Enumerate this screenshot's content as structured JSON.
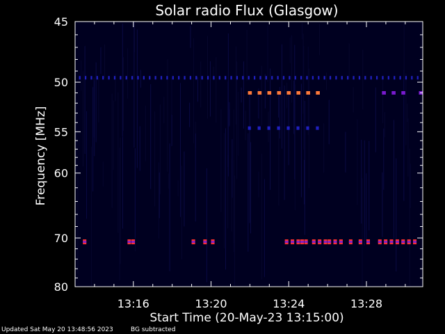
{
  "chart_data": {
    "type": "heatmap",
    "title": "Solar radio Flux (Glasgow)",
    "xlabel": "Start Time (20-May-23 13:15:00)",
    "ylabel": "Frequency [MHz]",
    "x_range_minutes": [
      13.0,
      30.9
    ],
    "y_range_mhz": [
      45,
      80
    ],
    "x_ticks": [
      {
        "label": "13:16",
        "value": 16
      },
      {
        "label": "13:20",
        "value": 20
      },
      {
        "label": "13:24",
        "value": 24
      },
      {
        "label": "13:28",
        "value": 28
      }
    ],
    "y_ticks": [
      {
        "label": "45",
        "value": 45
      },
      {
        "label": "50",
        "value": 50
      },
      {
        "label": "55",
        "value": 55
      },
      {
        "label": "60",
        "value": 60
      },
      {
        "label": "70",
        "value": 70
      },
      {
        "label": "80",
        "value": 80
      }
    ],
    "background_color": "#000020",
    "features": [
      {
        "kind": "dashes",
        "freq": 51,
        "color": "#ff7a3a",
        "starts": [
          21.9,
          22.4,
          22.9,
          23.4,
          23.9,
          24.4,
          24.9,
          25.4
        ],
        "width": 0.2
      },
      {
        "kind": "dashes",
        "freq": 51,
        "color": "#7a1ad0",
        "starts": [
          28.8,
          29.3,
          29.8,
          30.7
        ],
        "width": 0.2
      },
      {
        "kind": "dashes",
        "freq": 49.6,
        "color": "#2020c0",
        "starts": [
          13.2,
          13.5,
          13.8,
          14.1,
          14.4,
          14.7,
          15.0,
          15.3,
          15.6,
          15.9,
          16.2,
          16.5,
          16.8,
          17.1,
          17.4,
          17.7,
          18.0,
          18.3,
          18.6,
          18.9,
          19.2,
          19.5,
          19.8,
          20.1,
          20.4,
          20.7,
          21.0,
          21.3,
          21.6,
          21.9,
          22.2,
          22.5,
          22.8,
          23.1,
          23.4,
          23.7,
          24.0,
          24.3,
          24.6,
          24.9,
          25.2,
          25.5,
          25.8,
          26.1,
          26.4,
          26.7,
          27.0,
          27.3,
          27.6,
          27.9,
          28.2,
          28.5,
          28.8,
          29.1,
          29.4,
          29.7,
          30.0,
          30.3,
          30.6
        ],
        "width": 0.08
      },
      {
        "kind": "dashes",
        "freq": 54.6,
        "color": "#2020c0",
        "starts": [
          21.9,
          22.4,
          22.9,
          23.4,
          23.9,
          24.4,
          24.9,
          25.4
        ],
        "width": 0.15
      },
      {
        "kind": "dashes",
        "freq": 70.7,
        "color": "#8a20c0",
        "starts": [
          13.4,
          15.7,
          15.9,
          19.0,
          19.6,
          20.0,
          23.8,
          24.1,
          24.4,
          24.6,
          24.8,
          25.2,
          25.5,
          25.8,
          26.0,
          26.3,
          26.6,
          27.1,
          27.6,
          28.0,
          28.6,
          28.9,
          29.2,
          29.5,
          29.8,
          30.1,
          30.4
        ],
        "width": 0.18,
        "edge_color": "#ff3030"
      }
    ]
  },
  "footer": {
    "updated": "Updated Sat May 20 13:48:56 2023",
    "note": "BG subtracted"
  }
}
